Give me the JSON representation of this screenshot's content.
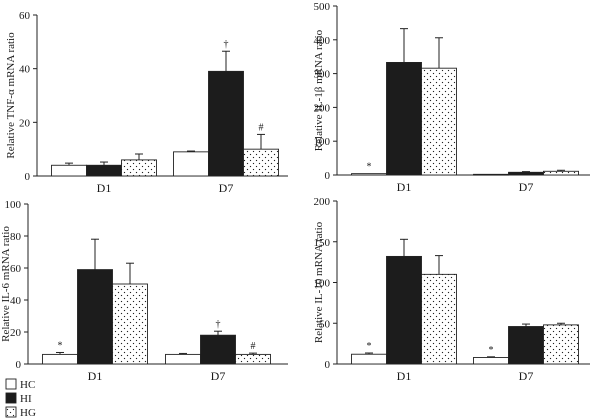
{
  "legend": [
    {
      "key": "HC",
      "label": "HC"
    },
    {
      "key": "HI",
      "label": "HI"
    },
    {
      "key": "HG",
      "label": "HG"
    }
  ],
  "chart_data": [
    {
      "id": "tnf",
      "type": "bar",
      "ylabel": "Relative TNF-α mRNA ratio",
      "ylim": [
        0,
        60
      ],
      "yticks": [
        "0",
        "20",
        "40",
        "60"
      ],
      "categories": [
        "D1",
        "D7"
      ],
      "series": [
        {
          "name": "HC",
          "values": [
            4,
            9
          ],
          "errors": [
            0.8,
            0.3
          ]
        },
        {
          "name": "HI",
          "values": [
            4,
            39
          ],
          "errors": [
            1.2,
            7.5
          ]
        },
        {
          "name": "HG",
          "values": [
            6,
            10
          ],
          "errors": [
            2.2,
            5.5
          ]
        }
      ],
      "annotations": [
        {
          "category": 1,
          "series": 1,
          "text": "†"
        },
        {
          "category": 1,
          "series": 2,
          "text": "#"
        }
      ]
    },
    {
      "id": "il1b",
      "type": "bar",
      "ylabel": "Relative IL-1β mRNA ratio",
      "ylim": [
        0,
        500
      ],
      "yticks": [
        "0",
        "100",
        "200",
        "300",
        "400",
        "500"
      ],
      "categories": [
        "D1",
        "D7"
      ],
      "series": [
        {
          "name": "HC",
          "values": [
            4,
            2
          ],
          "errors": [
            0,
            0
          ]
        },
        {
          "name": "HI",
          "values": [
            333,
            8
          ],
          "errors": [
            100,
            2
          ]
        },
        {
          "name": "HG",
          "values": [
            316,
            11
          ],
          "errors": [
            90,
            3
          ]
        }
      ],
      "annotations": [
        {
          "category": 0,
          "series": 0,
          "text": "*"
        }
      ]
    },
    {
      "id": "il6",
      "type": "bar",
      "ylabel": "Relative IL-6 mRNA ratio",
      "ylim": [
        0,
        100
      ],
      "yticks": [
        "0",
        "20",
        "40",
        "60",
        "80",
        "100"
      ],
      "categories": [
        "D1",
        "D7"
      ],
      "series": [
        {
          "name": "HC",
          "values": [
            6,
            6
          ],
          "errors": [
            1.2,
            0.6
          ]
        },
        {
          "name": "HI",
          "values": [
            59,
            18
          ],
          "errors": [
            19,
            2.5
          ]
        },
        {
          "name": "HG",
          "values": [
            50,
            6
          ],
          "errors": [
            13,
            0.8
          ]
        }
      ],
      "annotations": [
        {
          "category": 0,
          "series": 0,
          "text": "*"
        },
        {
          "category": 1,
          "series": 1,
          "text": "†"
        },
        {
          "category": 1,
          "series": 2,
          "text": "#"
        }
      ]
    },
    {
      "id": "il10",
      "type": "bar",
      "ylabel": "Relative IL-10 mRNA ratio",
      "ylim": [
        0,
        200
      ],
      "yticks": [
        "0",
        "50",
        "100",
        "150",
        "200"
      ],
      "categories": [
        "D1",
        "D7"
      ],
      "series": [
        {
          "name": "HC",
          "values": [
            12,
            8
          ],
          "errors": [
            1.5,
            0.8
          ]
        },
        {
          "name": "HI",
          "values": [
            132,
            46
          ],
          "errors": [
            21,
            3
          ]
        },
        {
          "name": "HG",
          "values": [
            110,
            48
          ],
          "errors": [
            23,
            2
          ]
        }
      ],
      "annotations": [
        {
          "category": 0,
          "series": 0,
          "text": "*"
        },
        {
          "category": 1,
          "series": 0,
          "text": "*"
        }
      ]
    }
  ]
}
